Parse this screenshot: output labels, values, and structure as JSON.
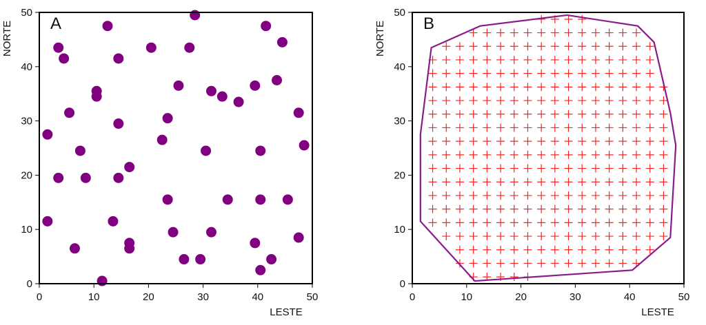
{
  "chart_data": [
    {
      "type": "scatter",
      "panel_label": "A",
      "xlabel": "LESTE",
      "ylabel": "NORTE",
      "xlim": [
        0,
        50
      ],
      "ylim": [
        0,
        50
      ],
      "xticks": [
        "0",
        "10",
        "20",
        "30",
        "40",
        "50"
      ],
      "yticks": [
        "0",
        "10",
        "20",
        "30",
        "40",
        "50"
      ],
      "marker_color": "#800080",
      "points": [
        [
          1.5,
          27.5
        ],
        [
          1.5,
          11.5
        ],
        [
          3.5,
          43.5
        ],
        [
          4.5,
          41.5
        ],
        [
          3.5,
          19.5
        ],
        [
          5.5,
          31.5
        ],
        [
          6.5,
          6.5
        ],
        [
          7.5,
          24.5
        ],
        [
          8.5,
          19.5
        ],
        [
          10.5,
          35.5
        ],
        [
          10.5,
          34.5
        ],
        [
          11.5,
          0.5
        ],
        [
          12.5,
          47.5
        ],
        [
          13.5,
          11.5
        ],
        [
          14.5,
          41.5
        ],
        [
          14.5,
          29.5
        ],
        [
          14.5,
          19.5
        ],
        [
          16.5,
          21.5
        ],
        [
          16.5,
          7.5
        ],
        [
          16.5,
          6.5
        ],
        [
          20.5,
          43.5
        ],
        [
          22.5,
          26.5
        ],
        [
          23.5,
          30.5
        ],
        [
          23.5,
          15.5
        ],
        [
          24.5,
          9.5
        ],
        [
          25.5,
          36.5
        ],
        [
          26.5,
          4.5
        ],
        [
          27.5,
          43.5
        ],
        [
          28.5,
          49.5
        ],
        [
          29.5,
          4.5
        ],
        [
          30.5,
          24.5
        ],
        [
          31.5,
          35.5
        ],
        [
          31.5,
          9.5
        ],
        [
          33.5,
          34.5
        ],
        [
          34.5,
          15.5
        ],
        [
          36.5,
          33.5
        ],
        [
          39.5,
          36.5
        ],
        [
          39.5,
          7.5
        ],
        [
          40.5,
          24.5
        ],
        [
          40.5,
          15.5
        ],
        [
          40.5,
          2.5
        ],
        [
          41.5,
          47.5
        ],
        [
          42.5,
          4.5
        ],
        [
          43.5,
          37.5
        ],
        [
          44.5,
          44.5
        ],
        [
          45.5,
          15.5
        ],
        [
          47.5,
          31.5
        ],
        [
          47.5,
          8.5
        ],
        [
          48.5,
          25.5
        ]
      ]
    },
    {
      "type": "scatter",
      "panel_label": "B",
      "xlabel": "LESTE",
      "ylabel": "NORTE",
      "xlim": [
        0,
        50
      ],
      "ylim": [
        0,
        50
      ],
      "xticks": [
        "0",
        "10",
        "20",
        "30",
        "40",
        "50"
      ],
      "yticks": [
        "0",
        "10",
        "20",
        "30",
        "40",
        "50"
      ],
      "hull_color": "#8B1A8B",
      "grid_color": "#FF2020",
      "grid_spacing": 2.5,
      "grid_offset": 1.25,
      "hull": [
        [
          11.5,
          0.5
        ],
        [
          40.5,
          2.5
        ],
        [
          47.5,
          8.5
        ],
        [
          48.5,
          25.5
        ],
        [
          47.5,
          31.5
        ],
        [
          44.5,
          44.5
        ],
        [
          41.5,
          47.5
        ],
        [
          28.5,
          49.5
        ],
        [
          12.5,
          47.5
        ],
        [
          3.5,
          43.5
        ],
        [
          1.5,
          27.5
        ],
        [
          1.5,
          11.5
        ]
      ]
    }
  ]
}
